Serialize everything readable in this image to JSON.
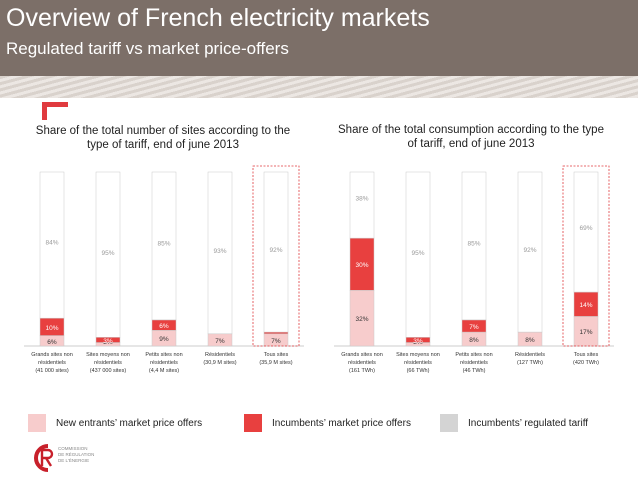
{
  "header": {
    "title": "Overview of French electricity markets",
    "subtitle": "Regulated tariff vs market price-offers"
  },
  "colors": {
    "header_bg": "#7c6f68",
    "accent": "#e03a3e",
    "new_entrants": "#f7cccc",
    "incumbents_market": "#e8403f",
    "regulated": "#ffffff",
    "regulated_swatch": "#d4d4d4",
    "highlight_border": "#e03a3e"
  },
  "legend": [
    {
      "label": "New entrants’ market price offers",
      "color": "#f7cccc"
    },
    {
      "label": "Incumbents’ market price offers",
      "color": "#e8403f"
    },
    {
      "label": "Incumbents’ regulated tariff",
      "color": "#d4d4d4"
    }
  ],
  "logo": {
    "text": "COMMISSION\nDE RÉGULATION\nDE L'ÉNERGIE"
  },
  "chart_data": [
    {
      "type": "bar",
      "stacked": true,
      "title": "Share of the total number of sites according to the type of tariff, end of june 2013",
      "categories": [
        [
          "Grands sites non",
          "résidentiels",
          "(41 000 sites)"
        ],
        [
          "Sites moyens non",
          "résidentiels",
          "(437 000 sites)"
        ],
        [
          "Petits sites non",
          "résidentiels",
          "(4,4 M sites)"
        ],
        [
          "Résidentiels",
          "(30,9 M sites)"
        ],
        [
          "Tous sites",
          "(35,9 M sites)"
        ]
      ],
      "highlight_category": 4,
      "ylim": [
        0,
        100
      ],
      "series": [
        {
          "name": "New entrants’ market price offers",
          "values": [
            6,
            2,
            9,
            7,
            7
          ],
          "labels": [
            "6%",
            "2%",
            "9%",
            "7%",
            "7%"
          ]
        },
        {
          "name": "Incumbents’ market price offers",
          "values": [
            10,
            3,
            6,
            0,
            1
          ],
          "labels": [
            "10%",
            "3%",
            "6%",
            "0%",
            "1%"
          ]
        },
        {
          "name": "Incumbents’ regulated tariff",
          "values": [
            84,
            95,
            85,
            93,
            92
          ],
          "labels": [
            "84%",
            "95%",
            "85%",
            "93%",
            "92%"
          ]
        }
      ]
    },
    {
      "type": "bar",
      "stacked": true,
      "title": "Share of the total consumption according to the type of tariff, end of june 2013",
      "categories": [
        [
          "Grands sites non",
          "résidentiels",
          "(161 TWh)"
        ],
        [
          "Sites moyens non",
          "résidentiels",
          "(66 TWh)"
        ],
        [
          "Petits sites non",
          "résidentiels",
          "(46 TWh)"
        ],
        [
          "Résidentiels",
          "(127 TWh)"
        ],
        [
          "Tous sites",
          "(420 TWh)"
        ]
      ],
      "highlight_category": 4,
      "ylim": [
        0,
        100
      ],
      "series": [
        {
          "name": "New entrants’ market price offers",
          "values": [
            32,
            2,
            8,
            8,
            17
          ],
          "labels": [
            "32%",
            "2%",
            "8%",
            "8%",
            "17%"
          ]
        },
        {
          "name": "Incumbents’ market price offers",
          "values": [
            30,
            3,
            7,
            0,
            14
          ],
          "labels": [
            "30%",
            "3%",
            "7%",
            "0%",
            "14%"
          ]
        },
        {
          "name": "Incumbents’ regulated tariff",
          "values": [
            38,
            95,
            85,
            92,
            69
          ],
          "labels": [
            "38%",
            "95%",
            "85%",
            "92%",
            "69%"
          ]
        }
      ]
    }
  ]
}
